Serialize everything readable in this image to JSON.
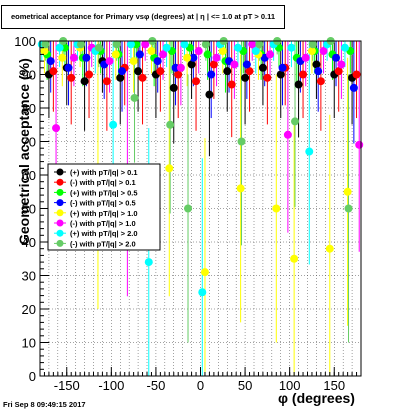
{
  "title": "eometrical acceptance for Primary vsφ (degrees) at | η | <= 1.0 at pT > 0.11",
  "footer": "Fri Sep  8 09:49:15 2017",
  "chart_data": {
    "type": "scatter",
    "xlabel": "φ (degrees)",
    "ylabel": "Geometrical acceptance (%)",
    "xlim": [
      -180,
      180
    ],
    "ylim": [
      0,
      100
    ],
    "x_ticks": [
      -150,
      -100,
      -50,
      0,
      50,
      100,
      150
    ],
    "y_ticks": [
      0,
      10,
      20,
      30,
      40,
      50,
      60,
      70,
      80,
      90,
      100
    ],
    "grid": true,
    "legend_position": "left-middle",
    "series": [
      {
        "name": "(+) with pT/|q| > 0.1",
        "color": "#000000",
        "marker": "circle",
        "x": [
          -170,
          -150,
          -130,
          -110,
          -90,
          -70,
          -50,
          -30,
          -10,
          10,
          30,
          50,
          70,
          90,
          110,
          130,
          150,
          170
        ],
        "y": [
          90,
          92,
          88,
          94,
          89,
          91,
          90,
          86,
          93,
          84,
          91,
          89,
          92,
          90,
          87,
          93,
          90,
          89
        ]
      },
      {
        "name": "(-) with pT/|q| > 0.1",
        "color": "#ff0000",
        "marker": "circle",
        "x": [
          -165,
          -145,
          -125,
          -105,
          -85,
          -65,
          -45,
          -25,
          -5,
          15,
          35,
          55,
          75,
          95,
          115,
          135,
          155,
          175
        ],
        "y": [
          91,
          89,
          90,
          88,
          92,
          89,
          91,
          90,
          88,
          93,
          87,
          91,
          89,
          92,
          90,
          88,
          91,
          90
        ]
      },
      {
        "name": "(+) with pT/|q| > 0.5",
        "color": "#00ff00",
        "marker": "circle",
        "x": [
          -172,
          -152,
          -132,
          -112,
          -92,
          -72,
          -52,
          -32,
          -12,
          8,
          28,
          48,
          68,
          88,
          108,
          128,
          148,
          168
        ],
        "y": [
          96,
          98,
          95,
          97,
          96,
          99,
          95,
          97,
          98,
          96,
          94,
          97,
          96,
          98,
          95,
          97,
          96,
          97
        ]
      },
      {
        "name": "(-) with pT/|q| > 0.5",
        "color": "#0000ff",
        "marker": "circle",
        "x": [
          -168,
          -148,
          -128,
          -108,
          -88,
          -68,
          -48,
          -28,
          -8,
          12,
          32,
          52,
          72,
          92,
          112,
          132,
          152,
          172
        ],
        "y": [
          94,
          92,
          95,
          93,
          91,
          96,
          94,
          92,
          95,
          90,
          94,
          93,
          95,
          92,
          94,
          91,
          95,
          86
        ]
      },
      {
        "name": "(+) with pT/|q| > 1.0",
        "color": "#ffff00",
        "marker": "circle",
        "x": [
          -175,
          -155,
          -135,
          -115,
          -95,
          -75,
          -55,
          -35,
          -15,
          5,
          25,
          45,
          65,
          85,
          105,
          125,
          145,
          165
        ],
        "y": [
          97,
          95,
          98,
          60,
          96,
          94,
          97,
          62,
          95,
          31,
          97,
          56,
          96,
          50,
          35,
          97,
          38,
          55
        ]
      },
      {
        "name": "(-) with pT/|q| > 1.0",
        "color": "#ff00ff",
        "marker": "circle",
        "x": [
          -162,
          -142,
          -122,
          -102,
          -82,
          -62,
          -42,
          -22,
          -2,
          18,
          38,
          58,
          78,
          98,
          118,
          138,
          158,
          178
        ],
        "y": [
          74,
          95,
          98,
          94,
          62,
          99,
          96,
          92,
          97,
          95,
          93,
          99,
          96,
          72,
          95,
          97,
          93,
          69
        ]
      },
      {
        "name": "(+) with pT/|q| > 2.0",
        "color": "#00ffff",
        "marker": "circle",
        "x": [
          -178,
          -158,
          -138,
          -118,
          -98,
          -78,
          -58,
          -38,
          -18,
          2,
          22,
          42,
          62,
          82,
          102,
          122,
          142,
          162
        ],
        "y": [
          99,
          98,
          99,
          97,
          75,
          99,
          34,
          98,
          99,
          25,
          99,
          98,
          97,
          99,
          98,
          67,
          99,
          98
        ]
      },
      {
        "name": "(-) with pT/|q| > 2.0",
        "color": "#66cc66",
        "marker": "circle",
        "x": [
          -174,
          -154,
          -134,
          -114,
          -94,
          -74,
          -54,
          -34,
          -14,
          6,
          26,
          46,
          66,
          86,
          106,
          126,
          146,
          166
        ],
        "y": [
          99,
          100,
          99,
          98,
          99,
          83,
          100,
          75,
          50,
          99,
          100,
          70,
          99,
          100,
          76,
          99,
          100,
          50
        ]
      }
    ]
  }
}
